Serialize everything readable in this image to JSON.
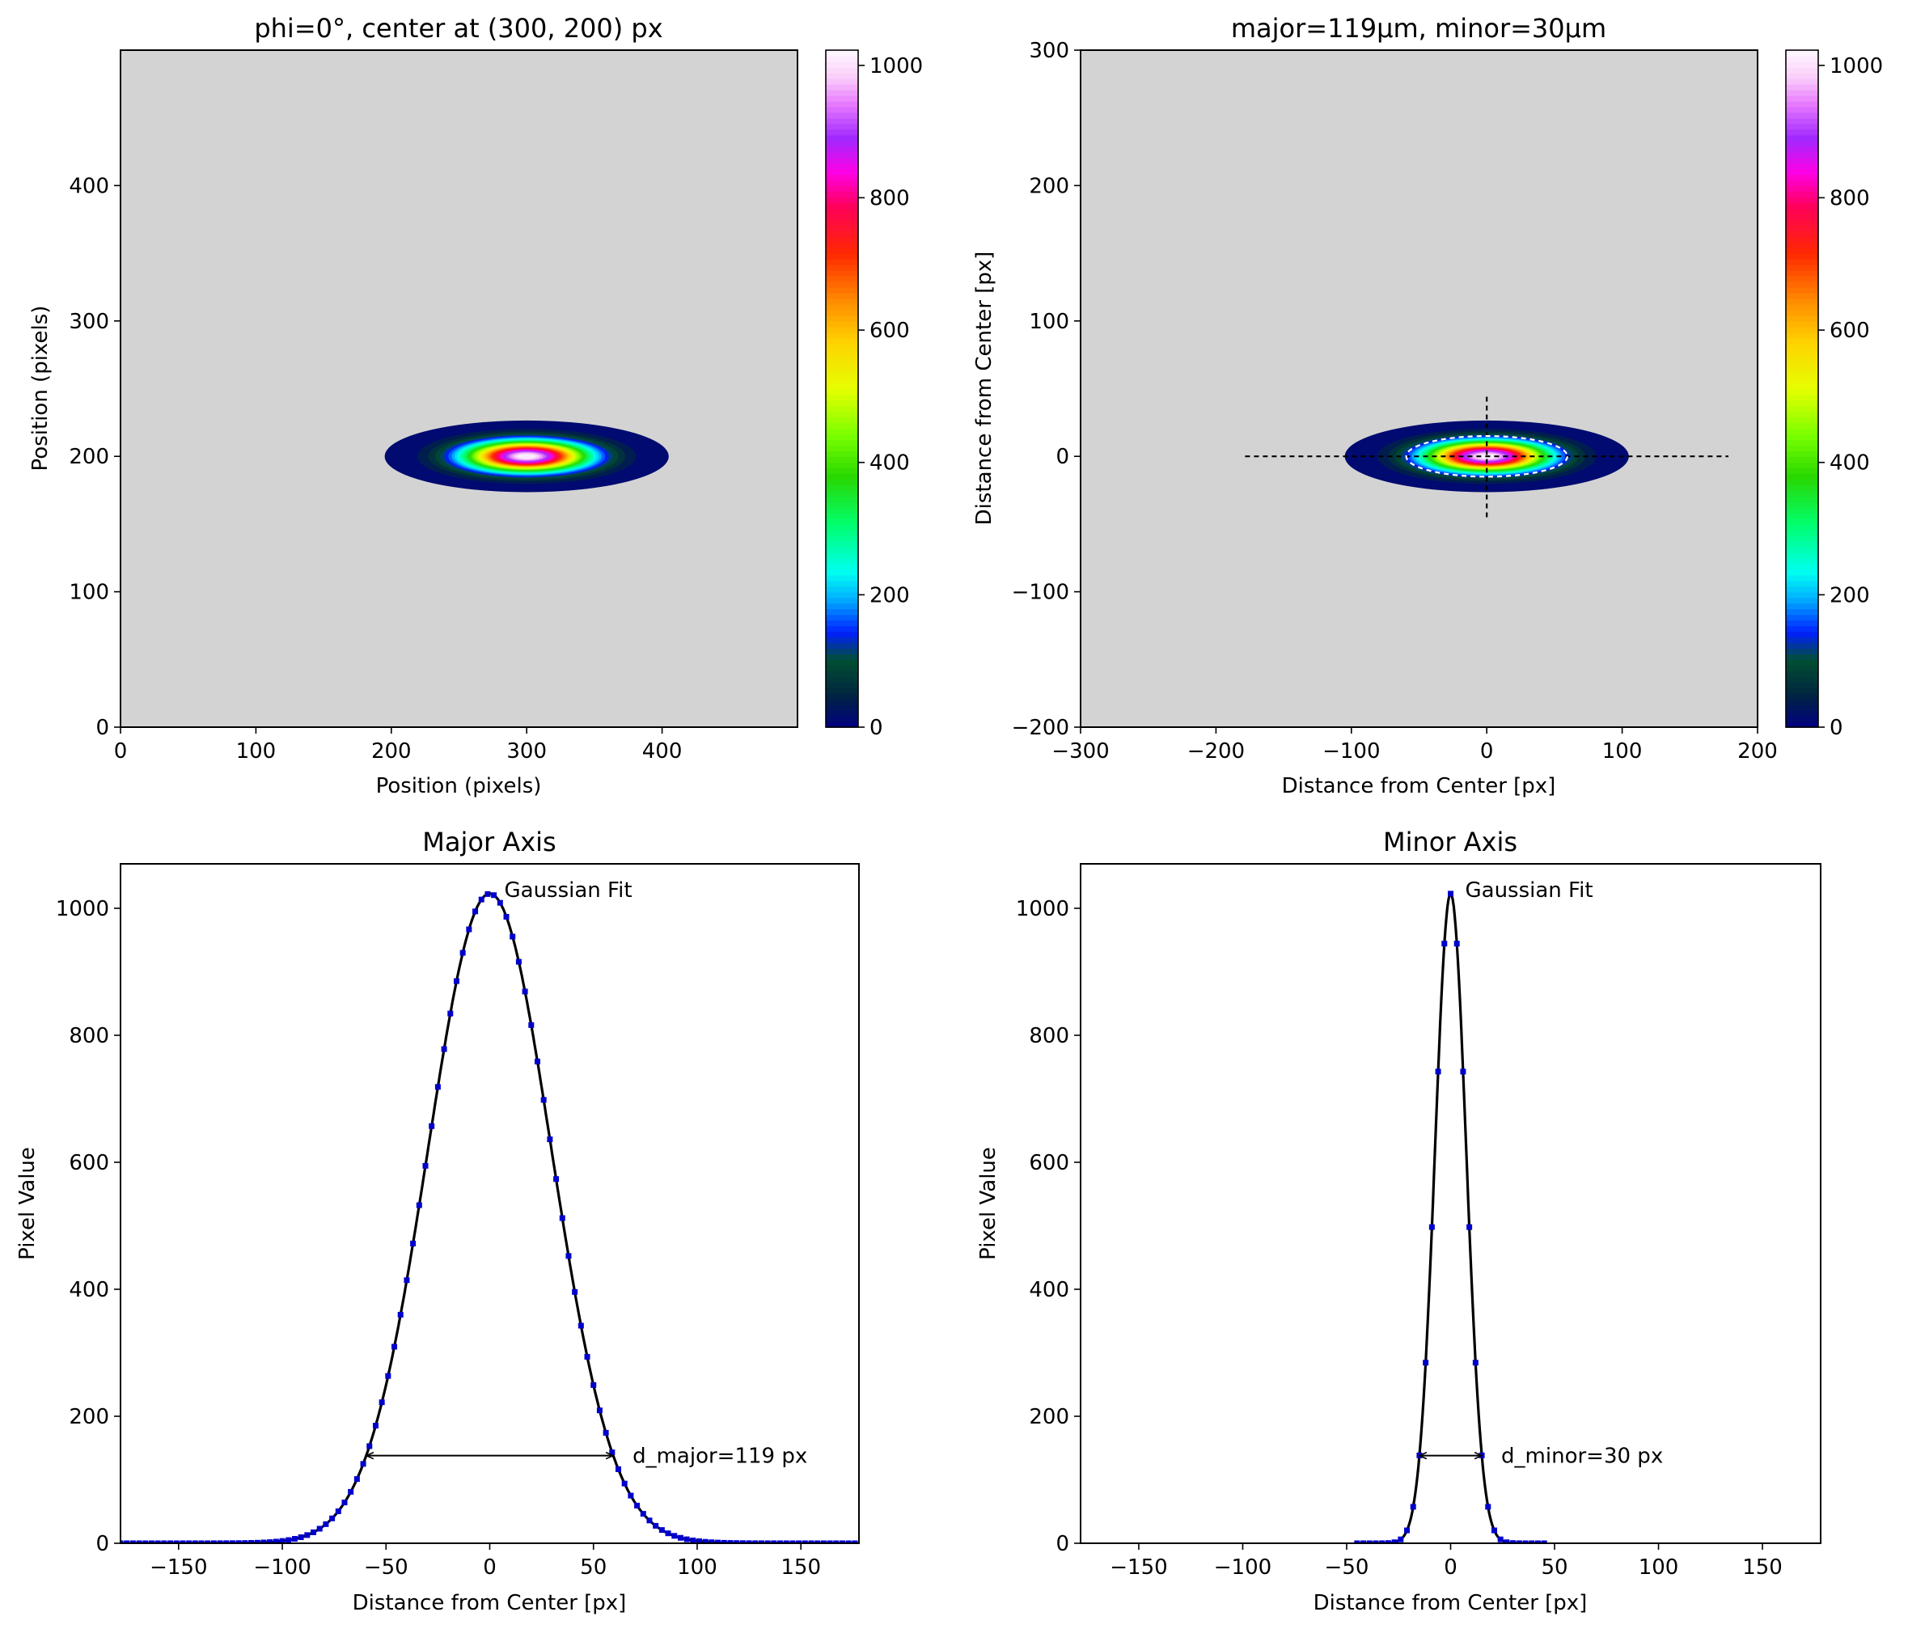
{
  "figure": {
    "panels": [
      {
        "title": "phi=0°, center at (300, 200) px",
        "xlabel": "Position (pixels)",
        "ylabel": "Position (pixels)"
      },
      {
        "title": "major=119µm, minor=30µm",
        "xlabel": "Distance from Center [px]",
        "ylabel": "Distance from Center [px]"
      },
      {
        "title": "Major Axis",
        "xlabel": "Distance from Center [px]",
        "ylabel": "Pixel Value",
        "fit_label": "Gaussian Fit",
        "width_label": "d_major=119 px"
      },
      {
        "title": "Minor Axis",
        "xlabel": "Distance from Center [px]",
        "ylabel": "Pixel Value",
        "fit_label": "Gaussian Fit",
        "width_label": "d_minor=30 px"
      }
    ]
  },
  "colors": {
    "background": "#d3d3d3",
    "profile_points": "#0000cc",
    "fit_line": "#000000",
    "dashed_lines": "#000000",
    "colormap": "gist_ncar"
  },
  "chart_data": [
    {
      "type": "heatmap",
      "title": "phi=0°, center at (300, 200) px",
      "xlabel": "Position (pixels)",
      "ylabel": "Position (pixels)",
      "xlim": [
        0,
        500
      ],
      "ylim": [
        500,
        0
      ],
      "xticks": [
        0,
        100,
        200,
        300,
        400
      ],
      "yticks": [
        0,
        100,
        200,
        300,
        400
      ],
      "beam": {
        "center_x": 300,
        "center_y": 200,
        "major_diameter": 119,
        "minor_diameter": 30,
        "phi_deg": 0,
        "peak": 1023
      },
      "colorbar": {
        "min": 0,
        "max": 1023,
        "ticks": [
          0,
          200,
          400,
          600,
          800,
          1000
        ]
      }
    },
    {
      "type": "heatmap",
      "title": "major=119µm, minor=30µm",
      "xlabel": "Distance from Center [px]",
      "ylabel": "Distance from Center [px]",
      "xlim": [
        -300,
        200
      ],
      "ylim": [
        300,
        -200
      ],
      "xticks": [
        -300,
        -200,
        -100,
        0,
        100,
        200
      ],
      "yticks": [
        -200,
        -100,
        0,
        100,
        200,
        300
      ],
      "beam": {
        "center_x": 0,
        "center_y": 0,
        "major_diameter": 119,
        "minor_diameter": 30,
        "phi_deg": 0,
        "peak": 1023
      },
      "integration_rect": {
        "x": [
          -178.5,
          178.5
        ],
        "y": [
          -45,
          45
        ]
      },
      "colorbar": {
        "min": 0,
        "max": 1023,
        "ticks": [
          0,
          200,
          400,
          600,
          800,
          1000
        ]
      }
    },
    {
      "type": "line",
      "title": "Major Axis",
      "xlabel": "Distance from Center [px]",
      "ylabel": "Pixel Value",
      "xlim": [
        -178,
        178
      ],
      "ylim": [
        0,
        1070
      ],
      "xticks": [
        -150,
        -100,
        -50,
        0,
        50,
        100,
        150
      ],
      "yticks": [
        0,
        200,
        400,
        600,
        800,
        1000
      ],
      "series": [
        {
          "name": "Gaussian Fit",
          "peak": 1023,
          "center": 0,
          "diameter_1e2": 119,
          "range": [
            -178,
            178
          ]
        }
      ],
      "annotation": {
        "text": "d_major=119 px",
        "x_from": -59.5,
        "x_to": 59.5,
        "y": 138
      }
    },
    {
      "type": "line",
      "title": "Minor Axis",
      "xlabel": "Distance from Center [px]",
      "ylabel": "Pixel Value",
      "xlim": [
        -178,
        178
      ],
      "ylim": [
        0,
        1070
      ],
      "xticks": [
        -150,
        -100,
        -50,
        0,
        50,
        100,
        150
      ],
      "yticks": [
        0,
        200,
        400,
        600,
        800,
        1000
      ],
      "series": [
        {
          "name": "Gaussian Fit",
          "peak": 1023,
          "center": 0,
          "diameter_1e2": 30,
          "range": [
            -45,
            45
          ]
        }
      ],
      "annotation": {
        "text": "d_minor=30 px",
        "x_from": -15,
        "x_to": 15,
        "y": 138
      }
    }
  ]
}
